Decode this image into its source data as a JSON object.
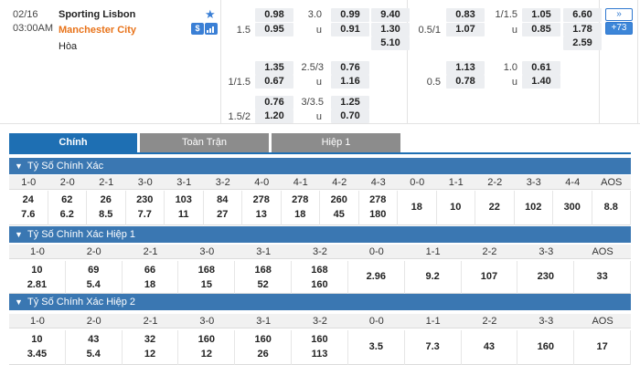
{
  "match": {
    "date": "02/16",
    "time": "03:00AM",
    "home": "Sporting Lisbon",
    "away": "Manchester City",
    "draw": "Hòa",
    "colors": {
      "home": "#222222",
      "away": "#e8731a",
      "accent": "#1e6fb3"
    }
  },
  "icons": {
    "star": "star-icon",
    "dollar": "dollar-icon",
    "chart": "chart-icon"
  },
  "odds_rows": [
    {
      "hdp_line": "",
      "hdp_home": "0.98",
      "ou_line": "3.0",
      "ou_home": "0.99",
      "x12_1": "9.40",
      "h1_hdp_line": "",
      "h1_hdp_home": "0.83",
      "h1_ou_line": "1/1.5",
      "h1_ou_home": "1.05",
      "h1_x12_1": "6.60"
    },
    {
      "hdp_line": "1.5",
      "hdp_away": "0.95",
      "ou_u": "u",
      "ou_away": "0.91",
      "x12_2": "1.30",
      "h1_hdp_line": "0.5/1",
      "h1_hdp_away": "1.07",
      "h1_ou_u": "u",
      "h1_ou_away": "0.85",
      "h1_x12_2": "1.78"
    },
    {
      "x12_x": "5.10",
      "h1_x12_x": "2.59"
    }
  ],
  "odds_rows2": [
    {
      "hdp_home": "1.35",
      "ou_line": "2.5/3",
      "ou_home": "0.76",
      "h1_hdp_home": "1.13",
      "h1_ou_line": "1.0",
      "h1_ou_home": "0.61"
    },
    {
      "hdp_line": "1/1.5",
      "hdp_away": "0.67",
      "ou_u": "u",
      "ou_away": "1.16",
      "h1_hdp_line": "0.5",
      "h1_hdp_away": "0.78",
      "h1_ou_u": "u",
      "h1_ou_away": "1.40"
    }
  ],
  "odds_rows3": [
    {
      "hdp_home": "0.76",
      "ou_line": "3/3.5",
      "ou_home": "1.25"
    },
    {
      "hdp_line": "1.5/2",
      "hdp_away": "1.20",
      "ou_u": "u",
      "ou_away": "0.70"
    }
  ],
  "side_buttons": {
    "more": "»",
    "count": "+73"
  },
  "tabs": [
    "Chính",
    "Toàn Trận",
    "Hiệp 1"
  ],
  "sections": [
    {
      "title": "Tỷ Số Chính Xác",
      "cols": [
        "1-0",
        "2-0",
        "2-1",
        "3-0",
        "3-1",
        "3-2",
        "4-0",
        "4-1",
        "4-2",
        "4-3",
        "0-0",
        "1-1",
        "2-2",
        "3-3",
        "4-4",
        "AOS"
      ],
      "top": [
        "24",
        "62",
        "26",
        "230",
        "103",
        "84",
        "278",
        "278",
        "260",
        "278",
        "18",
        "10",
        "22",
        "102",
        "300",
        "8.8"
      ],
      "bottom": [
        "7.6",
        "6.2",
        "8.5",
        "7.7",
        "11",
        "27",
        "13",
        "18",
        "45",
        "180",
        "",
        "",
        "",
        "",
        "",
        ""
      ]
    },
    {
      "title": "Tỷ Số Chính Xác Hiệp 1",
      "cols": [
        "1-0",
        "2-0",
        "2-1",
        "3-0",
        "3-1",
        "3-2",
        "0-0",
        "1-1",
        "2-2",
        "3-3",
        "AOS"
      ],
      "top": [
        "10",
        "69",
        "66",
        "168",
        "168",
        "168",
        "2.96",
        "9.2",
        "107",
        "230",
        "33"
      ],
      "bottom": [
        "2.81",
        "5.4",
        "18",
        "15",
        "52",
        "160",
        "",
        "",
        "",
        "",
        ""
      ]
    },
    {
      "title": "Tỷ Số Chính Xác Hiệp 2",
      "cols": [
        "1-0",
        "2-0",
        "2-1",
        "3-0",
        "3-1",
        "3-2",
        "0-0",
        "1-1",
        "2-2",
        "3-3",
        "AOS"
      ],
      "top": [
        "10",
        "43",
        "32",
        "160",
        "160",
        "160",
        "3.5",
        "7.3",
        "43",
        "160",
        "17"
      ],
      "bottom": [
        "3.45",
        "5.4",
        "12",
        "12",
        "26",
        "113",
        "",
        "",
        "",
        "",
        ""
      ]
    }
  ]
}
